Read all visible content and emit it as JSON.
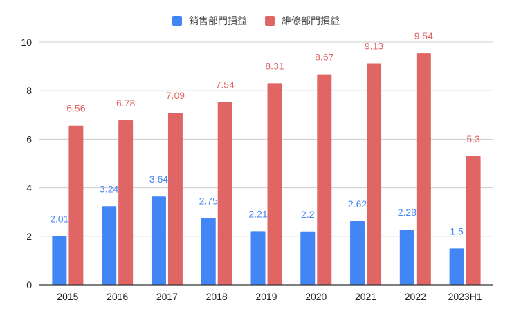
{
  "chart_data": {
    "type": "bar",
    "categories": [
      "2015",
      "2016",
      "2017",
      "2018",
      "2019",
      "2020",
      "2021",
      "2022",
      "2023H1"
    ],
    "series": [
      {
        "name": "銷售部門損益",
        "color": "#4285f4",
        "values": [
          2.01,
          3.24,
          3.64,
          2.75,
          2.21,
          2.2,
          2.62,
          2.28,
          1.5
        ]
      },
      {
        "name": "維修部門損益",
        "color": "#e06666",
        "values": [
          6.56,
          6.78,
          7.09,
          7.54,
          8.31,
          8.67,
          9.13,
          9.54,
          5.3
        ]
      }
    ],
    "ylim": [
      0,
      10
    ],
    "yticks": [
      0,
      2,
      4,
      6,
      8,
      10
    ],
    "grid": true,
    "legend": "top",
    "data_labels": true
  }
}
